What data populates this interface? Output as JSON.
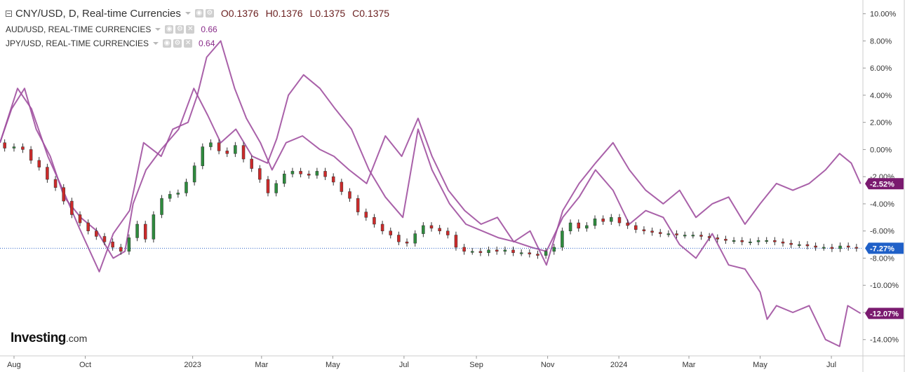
{
  "legend": {
    "main": {
      "title": "CNY/USD, D, Real-time Currencies",
      "open": "O0.1376",
      "high": "H0.1376",
      "low": "L0.1375",
      "close": "C0.1375"
    },
    "overlays": [
      {
        "title": "AUD/USD, REAL-TIME CURRENCIES",
        "value": "0.66"
      },
      {
        "title": "JPY/USD, REAL-TIME CURRENCIES",
        "value": "0.64"
      }
    ]
  },
  "brand": {
    "name": "Investing",
    "suffix": ".com"
  },
  "colors": {
    "line": "#a050a0",
    "up": "#2e8b3d",
    "down": "#cc2a2a",
    "grid": "#e8e8e8",
    "axis": "#cccccc",
    "marker_main": "#1f60c8",
    "marker_overlay": "#7a1a6f",
    "base_line": "#2e64c8"
  },
  "chart_data": {
    "type": "line",
    "x_tick_labels": [
      "Aug",
      "Oct",
      "2023",
      "Mar",
      "May",
      "Jul",
      "Sep",
      "Nov",
      "2024",
      "Mar",
      "May",
      "Jul"
    ],
    "x_tick_dates": [
      "2022-08-01",
      "2022-10-01",
      "2023-01-01",
      "2023-03-01",
      "2023-05-01",
      "2023-07-01",
      "2023-09-01",
      "2023-11-01",
      "2024-01-01",
      "2024-03-01",
      "2024-05-01",
      "2024-07-01"
    ],
    "x_range": [
      "2022-07-20",
      "2024-07-28"
    ],
    "y_axis": {
      "label": "",
      "unit": "%",
      "ylim": [
        -15.2,
        10.6
      ],
      "ticks": [
        10,
        8,
        6,
        4,
        2,
        0,
        -2,
        -4,
        -6,
        -8,
        -10,
        -12,
        -14
      ]
    },
    "grid": false,
    "series": [
      {
        "name": "CNY/USD, D, Real-time Currencies",
        "style": "candles",
        "points": [
          [
            "2022-07-20",
            0.5
          ],
          [
            "2022-07-28",
            0.1
          ],
          [
            "2022-08-05",
            0.2
          ],
          [
            "2022-08-12",
            0.0
          ],
          [
            "2022-08-19",
            -0.8
          ],
          [
            "2022-08-26",
            -1.3
          ],
          [
            "2022-09-02",
            -2.2
          ],
          [
            "2022-09-09",
            -2.8
          ],
          [
            "2022-09-16",
            -3.8
          ],
          [
            "2022-09-23",
            -4.8
          ],
          [
            "2022-09-30",
            -5.4
          ],
          [
            "2022-10-07",
            -6.0
          ],
          [
            "2022-10-14",
            -6.4
          ],
          [
            "2022-10-21",
            -6.8
          ],
          [
            "2022-10-28",
            -7.2
          ],
          [
            "2022-11-04",
            -7.5
          ],
          [
            "2022-11-11",
            -6.5
          ],
          [
            "2022-11-18",
            -5.5
          ],
          [
            "2022-11-25",
            -6.6
          ],
          [
            "2022-12-02",
            -4.8
          ],
          [
            "2022-12-09",
            -3.6
          ],
          [
            "2022-12-16",
            -3.3
          ],
          [
            "2022-12-23",
            -3.2
          ],
          [
            "2022-12-30",
            -2.4
          ],
          [
            "2023-01-06",
            -1.2
          ],
          [
            "2023-01-13",
            0.2
          ],
          [
            "2023-01-20",
            0.5
          ],
          [
            "2023-01-27",
            -0.1
          ],
          [
            "2023-02-03",
            -0.3
          ],
          [
            "2023-02-10",
            0.3
          ],
          [
            "2023-02-17",
            -0.7
          ],
          [
            "2023-02-24",
            -1.4
          ],
          [
            "2023-03-03",
            -2.2
          ],
          [
            "2023-03-10",
            -3.2
          ],
          [
            "2023-03-17",
            -2.5
          ],
          [
            "2023-03-24",
            -1.8
          ],
          [
            "2023-03-31",
            -1.6
          ],
          [
            "2023-04-07",
            -1.8
          ],
          [
            "2023-04-14",
            -1.9
          ],
          [
            "2023-04-21",
            -1.6
          ],
          [
            "2023-04-28",
            -2.0
          ],
          [
            "2023-05-05",
            -2.4
          ],
          [
            "2023-05-12",
            -3.1
          ],
          [
            "2023-05-19",
            -3.6
          ],
          [
            "2023-05-26",
            -4.6
          ],
          [
            "2023-06-02",
            -5.0
          ],
          [
            "2023-06-09",
            -5.5
          ],
          [
            "2023-06-16",
            -6.0
          ],
          [
            "2023-06-23",
            -6.3
          ],
          [
            "2023-06-30",
            -6.8
          ],
          [
            "2023-07-07",
            -6.9
          ],
          [
            "2023-07-14",
            -6.2
          ],
          [
            "2023-07-21",
            -5.6
          ],
          [
            "2023-07-28",
            -5.8
          ],
          [
            "2023-08-04",
            -6.0
          ],
          [
            "2023-08-11",
            -6.3
          ],
          [
            "2023-08-18",
            -7.2
          ],
          [
            "2023-08-25",
            -7.5
          ],
          [
            "2023-09-01",
            -7.5
          ],
          [
            "2023-09-08",
            -7.6
          ],
          [
            "2023-09-15",
            -7.4
          ],
          [
            "2023-09-22",
            -7.5
          ],
          [
            "2023-09-29",
            -7.4
          ],
          [
            "2023-10-06",
            -7.6
          ],
          [
            "2023-10-13",
            -7.6
          ],
          [
            "2023-10-20",
            -7.7
          ],
          [
            "2023-10-27",
            -7.8
          ],
          [
            "2023-11-03",
            -7.5
          ],
          [
            "2023-11-10",
            -7.2
          ],
          [
            "2023-11-17",
            -6.0
          ],
          [
            "2023-11-24",
            -5.4
          ],
          [
            "2023-12-01",
            -5.8
          ],
          [
            "2023-12-08",
            -5.6
          ],
          [
            "2023-12-15",
            -5.1
          ],
          [
            "2023-12-22",
            -5.3
          ],
          [
            "2023-12-29",
            -5.0
          ],
          [
            "2024-01-05",
            -5.4
          ],
          [
            "2024-01-12",
            -5.6
          ],
          [
            "2024-01-19",
            -5.9
          ],
          [
            "2024-01-26",
            -6.0
          ],
          [
            "2024-02-02",
            -6.1
          ],
          [
            "2024-02-09",
            -6.2
          ],
          [
            "2024-02-16",
            -6.2
          ],
          [
            "2024-02-23",
            -6.3
          ],
          [
            "2024-03-01",
            -6.3
          ],
          [
            "2024-03-08",
            -6.3
          ],
          [
            "2024-03-15",
            -6.4
          ],
          [
            "2024-03-22",
            -6.5
          ],
          [
            "2024-03-29",
            -6.6
          ],
          [
            "2024-04-05",
            -6.7
          ],
          [
            "2024-04-12",
            -6.7
          ],
          [
            "2024-04-19",
            -6.8
          ],
          [
            "2024-04-26",
            -6.8
          ],
          [
            "2024-05-03",
            -6.7
          ],
          [
            "2024-05-10",
            -6.7
          ],
          [
            "2024-05-17",
            -6.8
          ],
          [
            "2024-05-24",
            -6.9
          ],
          [
            "2024-05-31",
            -7.0
          ],
          [
            "2024-06-07",
            -7.0
          ],
          [
            "2024-06-14",
            -7.1
          ],
          [
            "2024-06-21",
            -7.2
          ],
          [
            "2024-06-28",
            -7.2
          ],
          [
            "2024-07-05",
            -7.3
          ],
          [
            "2024-07-12",
            -7.1
          ],
          [
            "2024-07-19",
            -7.2
          ],
          [
            "2024-07-26",
            -7.27
          ]
        ],
        "last_label": "-7.27%"
      },
      {
        "name": "AUD/USD, REAL-TIME CURRENCIES",
        "style": "line",
        "points": [
          [
            "2022-07-20",
            0.5
          ],
          [
            "2022-08-04",
            4.5
          ],
          [
            "2022-08-16",
            3.0
          ],
          [
            "2022-08-30",
            -0.5
          ],
          [
            "2022-09-12",
            -3.0
          ],
          [
            "2022-09-26",
            -5.8
          ],
          [
            "2022-10-13",
            -9.0
          ],
          [
            "2022-10-25",
            -6.2
          ],
          [
            "2022-11-08",
            -4.5
          ],
          [
            "2022-11-20",
            0.5
          ],
          [
            "2022-12-05",
            -0.5
          ],
          [
            "2022-12-15",
            1.5
          ],
          [
            "2022-12-28",
            2.0
          ],
          [
            "2023-01-05",
            4.0
          ],
          [
            "2023-01-13",
            6.8
          ],
          [
            "2023-01-25",
            8.0
          ],
          [
            "2023-02-06",
            4.5
          ],
          [
            "2023-02-16",
            2.3
          ],
          [
            "2023-02-28",
            0.5
          ],
          [
            "2023-03-10",
            -1.5
          ],
          [
            "2023-03-22",
            0.5
          ],
          [
            "2023-04-05",
            1.0
          ],
          [
            "2023-04-20",
            0.0
          ],
          [
            "2023-05-02",
            -0.5
          ],
          [
            "2023-05-15",
            -1.5
          ],
          [
            "2023-05-30",
            -2.5
          ],
          [
            "2023-06-15",
            1.0
          ],
          [
            "2023-06-29",
            -0.5
          ],
          [
            "2023-07-13",
            2.3
          ],
          [
            "2023-07-25",
            -0.5
          ],
          [
            "2023-08-08",
            -3.0
          ],
          [
            "2023-08-22",
            -4.5
          ],
          [
            "2023-09-05",
            -5.5
          ],
          [
            "2023-09-19",
            -5.0
          ],
          [
            "2023-10-03",
            -6.8
          ],
          [
            "2023-10-17",
            -6.0
          ],
          [
            "2023-10-31",
            -8.5
          ],
          [
            "2023-11-14",
            -4.5
          ],
          [
            "2023-11-28",
            -2.5
          ],
          [
            "2023-12-12",
            -1.0
          ],
          [
            "2023-12-27",
            0.5
          ],
          [
            "2024-01-10",
            -1.5
          ],
          [
            "2024-01-24",
            -3.0
          ],
          [
            "2024-02-08",
            -4.0
          ],
          [
            "2024-02-22",
            -3.0
          ],
          [
            "2024-03-07",
            -5.0
          ],
          [
            "2024-03-21",
            -4.0
          ],
          [
            "2024-04-04",
            -3.5
          ],
          [
            "2024-04-18",
            -5.5
          ],
          [
            "2024-05-01",
            -4.0
          ],
          [
            "2024-05-15",
            -2.5
          ],
          [
            "2024-05-29",
            -3.0
          ],
          [
            "2024-06-12",
            -2.5
          ],
          [
            "2024-06-26",
            -1.5
          ],
          [
            "2024-07-08",
            -0.3
          ],
          [
            "2024-07-18",
            -1.0
          ],
          [
            "2024-07-26",
            -2.52
          ]
        ],
        "last_label": "-2.52%"
      },
      {
        "name": "JPY/USD, REAL-TIME CURRENCIES",
        "style": "line",
        "points": [
          [
            "2022-07-20",
            0.5
          ],
          [
            "2022-07-30",
            3.0
          ],
          [
            "2022-08-10",
            4.5
          ],
          [
            "2022-08-20",
            1.5
          ],
          [
            "2022-09-01",
            -0.5
          ],
          [
            "2022-09-13",
            -3.5
          ],
          [
            "2022-09-27",
            -5.0
          ],
          [
            "2022-10-11",
            -6.0
          ],
          [
            "2022-10-25",
            -8.0
          ],
          [
            "2022-11-04",
            -7.5
          ],
          [
            "2022-11-11",
            -4.0
          ],
          [
            "2022-11-22",
            -1.5
          ],
          [
            "2022-12-05",
            0.0
          ],
          [
            "2022-12-20",
            1.5
          ],
          [
            "2023-01-02",
            4.5
          ],
          [
            "2023-01-14",
            2.5
          ],
          [
            "2023-01-25",
            0.5
          ],
          [
            "2023-02-07",
            1.5
          ],
          [
            "2023-02-21",
            -0.5
          ],
          [
            "2023-03-06",
            -1.0
          ],
          [
            "2023-03-14",
            0.8
          ],
          [
            "2023-03-24",
            4.0
          ],
          [
            "2023-04-06",
            5.5
          ],
          [
            "2023-04-20",
            4.5
          ],
          [
            "2023-05-03",
            3.0
          ],
          [
            "2023-05-17",
            1.5
          ],
          [
            "2023-06-01",
            -1.5
          ],
          [
            "2023-06-15",
            -3.5
          ],
          [
            "2023-06-30",
            -5.0
          ],
          [
            "2023-07-13",
            1.5
          ],
          [
            "2023-07-25",
            -1.5
          ],
          [
            "2023-08-09",
            -4.0
          ],
          [
            "2023-08-23",
            -5.5
          ],
          [
            "2023-09-06",
            -6.0
          ],
          [
            "2023-09-20",
            -6.5
          ],
          [
            "2023-10-04",
            -6.8
          ],
          [
            "2023-10-18",
            -7.2
          ],
          [
            "2023-10-31",
            -7.5
          ],
          [
            "2023-11-14",
            -5.0
          ],
          [
            "2023-11-28",
            -3.5
          ],
          [
            "2023-12-12",
            -1.5
          ],
          [
            "2023-12-27",
            -3.0
          ],
          [
            "2024-01-10",
            -5.5
          ],
          [
            "2024-01-24",
            -4.5
          ],
          [
            "2024-02-08",
            -5.0
          ],
          [
            "2024-02-22",
            -7.0
          ],
          [
            "2024-03-07",
            -8.0
          ],
          [
            "2024-03-21",
            -6.2
          ],
          [
            "2024-04-04",
            -8.5
          ],
          [
            "2024-04-18",
            -8.8
          ],
          [
            "2024-05-01",
            -10.5
          ],
          [
            "2024-05-07",
            -12.5
          ],
          [
            "2024-05-15",
            -11.5
          ],
          [
            "2024-05-29",
            -12.0
          ],
          [
            "2024-06-12",
            -11.5
          ],
          [
            "2024-06-26",
            -14.0
          ],
          [
            "2024-07-08",
            -14.5
          ],
          [
            "2024-07-15",
            -11.5
          ],
          [
            "2024-07-26",
            -12.07
          ]
        ],
        "last_label": "-12.07%"
      }
    ]
  }
}
